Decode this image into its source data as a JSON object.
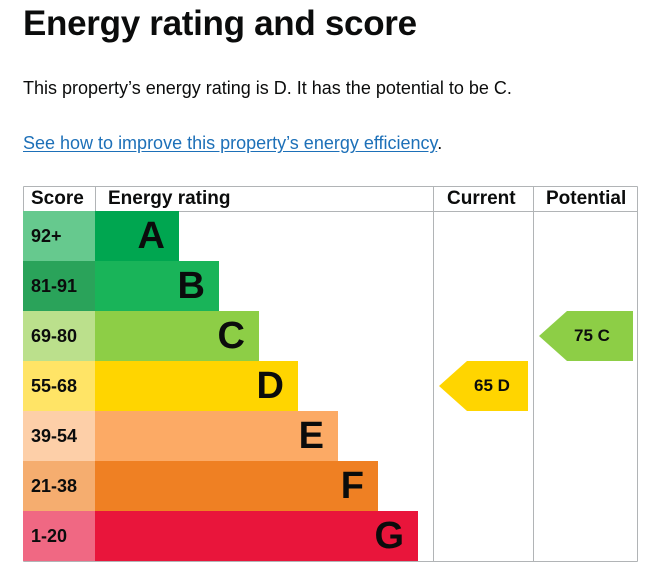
{
  "page": {
    "title": "Energy rating and score",
    "summary": "This property’s energy rating is D. It has the potential to be C.",
    "link_text": "See how to improve this property’s energy efficiency",
    "link_suffix": "."
  },
  "table": {
    "headers": {
      "score": "Score",
      "rating": "Energy rating",
      "current": "Current",
      "potential": "Potential"
    },
    "bands": [
      {
        "letter": "A",
        "range": "92+",
        "color": "#00a650",
        "score_color": "#66c98e",
        "fill": 0.21
      },
      {
        "letter": "B",
        "range": "81-91",
        "color": "#19b459",
        "score_color": "#2aa35a",
        "fill": 0.31
      },
      {
        "letter": "C",
        "range": "69-80",
        "color": "#8dce46",
        "score_color": "#bbe08c",
        "fill": 0.41
      },
      {
        "letter": "D",
        "range": "55-68",
        "color": "#ffd500",
        "score_color": "#ffe466",
        "fill": 0.51
      },
      {
        "letter": "E",
        "range": "39-54",
        "color": "#fcaa65",
        "score_color": "#fdcfa8",
        "fill": 0.61
      },
      {
        "letter": "F",
        "range": "21-38",
        "color": "#ef8023",
        "score_color": "#f5ad6f",
        "fill": 0.71
      },
      {
        "letter": "G",
        "range": "1-20",
        "color": "#e9153b",
        "score_color": "#f06883",
        "fill": 0.81
      }
    ],
    "current": {
      "score": "65",
      "letter": "D",
      "label": "65  D",
      "color": "#ffd500",
      "band": 3
    },
    "potential": {
      "score": "75",
      "letter": "C",
      "label": "75  C",
      "color": "#8dce46",
      "band": 2
    }
  },
  "colors": {
    "link": "#1d70b8",
    "grid": "#b1b4b6",
    "text": "#0b0c0c"
  }
}
